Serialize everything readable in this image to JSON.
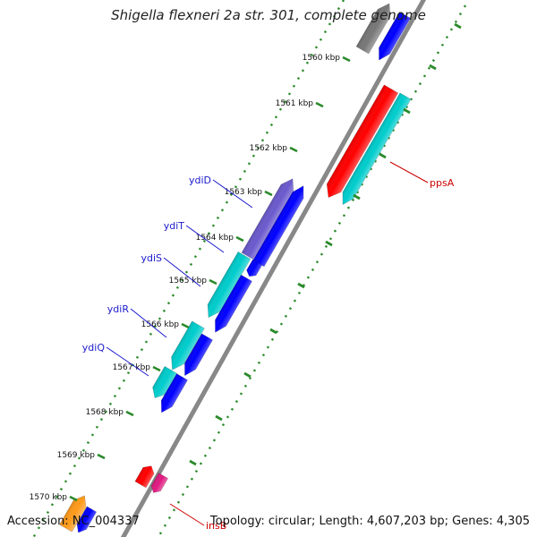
{
  "title": "Shigella flexneri 2a str. 301, complete genome",
  "accession": "Accession: NC_004337",
  "summary": "Topology: circular; Length: 4,607,203 bp; Genes: 4,305",
  "colors": {
    "backbone": "#888888",
    "tick_major": "#2a8a2a",
    "tick_minor": "#2a8a2a",
    "gene_label": "#1a1acc",
    "gene_label_red": "#cc0000",
    "red": "#ff0000",
    "cyan": "#00cccc",
    "blue": "#0000ff",
    "slate": "#6a5acd",
    "gray": "#777777",
    "orange": "#ff9a1a",
    "magenta": "#e01a80"
  },
  "ticks": [
    {
      "label": "1560 kbp"
    },
    {
      "label": "1561 kbp"
    },
    {
      "label": "1562 kbp"
    },
    {
      "label": "1563 kbp"
    },
    {
      "label": "1564 kbp"
    },
    {
      "label": "1565 kbp"
    },
    {
      "label": "1566 kbp"
    },
    {
      "label": "1567 kbp"
    },
    {
      "label": "1568 kbp"
    },
    {
      "label": "1569 kbp"
    },
    {
      "label": "1570 kbp"
    }
  ],
  "gene_labels": [
    {
      "name": "ydiD",
      "color": "gene_label"
    },
    {
      "name": "ydiT",
      "color": "gene_label"
    },
    {
      "name": "ydiS",
      "color": "gene_label"
    },
    {
      "name": "ydiR",
      "color": "gene_label"
    },
    {
      "name": "ydiQ",
      "color": "gene_label"
    },
    {
      "name": "ppsA",
      "color": "gene_label_red"
    },
    {
      "name": "insB",
      "color": "gene_label_red"
    }
  ]
}
